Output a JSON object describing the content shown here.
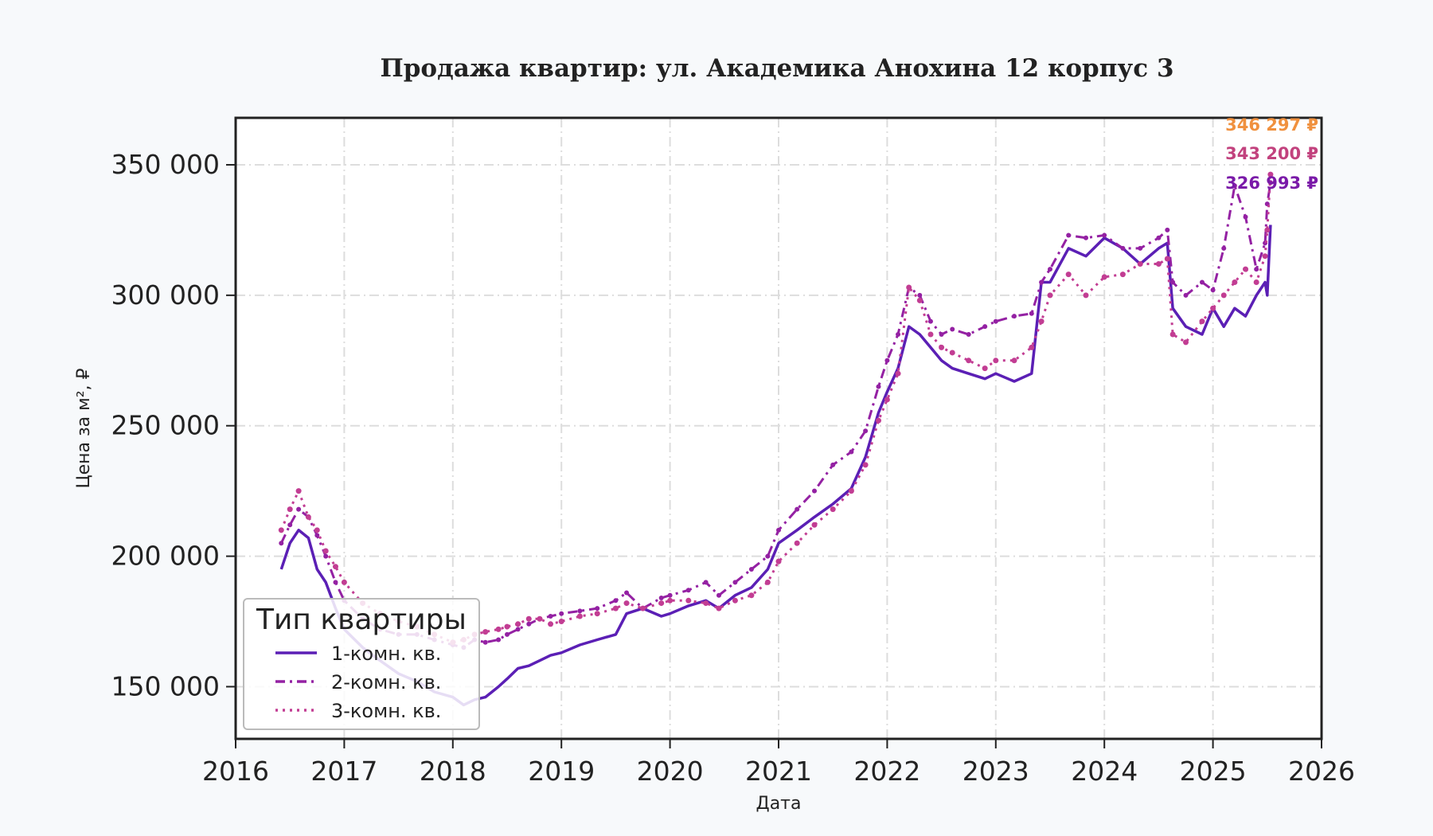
{
  "chart_data": {
    "type": "line",
    "title": "Продажа квартир: ул. Академика Анохина 12 корпус 3",
    "xlabel": "Дата",
    "ylabel": "Цена за м², ₽",
    "xlim": [
      2016.0,
      2026.0
    ],
    "ylim": [
      130000,
      368000
    ],
    "x_ticks": [
      "2016",
      "2017",
      "2018",
      "2019",
      "2020",
      "2021",
      "2022",
      "2023",
      "2024",
      "2025",
      "2026"
    ],
    "y_ticks": [
      {
        "value": 150000,
        "label": "150 000"
      },
      {
        "value": 200000,
        "label": "200 000"
      },
      {
        "value": 250000,
        "label": "250 000"
      },
      {
        "value": 300000,
        "label": "300 000"
      },
      {
        "value": 350000,
        "label": "350 000"
      }
    ],
    "grid": true,
    "legend": {
      "title": "Тип квартиры",
      "position": "bottom-left"
    },
    "series": [
      {
        "name": "1-комн. кв.",
        "color": "#5b1fb5",
        "style": "solid",
        "end_label": "326 993 ₽",
        "x": [
          2016.42,
          2016.5,
          2016.58,
          2016.67,
          2016.75,
          2016.83,
          2016.92,
          2017.0,
          2017.17,
          2017.33,
          2017.5,
          2017.67,
          2017.83,
          2018.0,
          2018.1,
          2018.2,
          2018.3,
          2018.42,
          2018.5,
          2018.6,
          2018.7,
          2018.8,
          2018.9,
          2019.0,
          2019.17,
          2019.33,
          2019.5,
          2019.6,
          2019.75,
          2019.92,
          2020.0,
          2020.17,
          2020.33,
          2020.45,
          2020.6,
          2020.75,
          2020.9,
          2021.0,
          2021.17,
          2021.33,
          2021.5,
          2021.67,
          2021.8,
          2021.92,
          2022.0,
          2022.1,
          2022.2,
          2022.3,
          2022.4,
          2022.5,
          2022.6,
          2022.75,
          2022.9,
          2023.0,
          2023.17,
          2023.33,
          2023.42,
          2023.5,
          2023.67,
          2023.83,
          2024.0,
          2024.17,
          2024.33,
          2024.5,
          2024.58,
          2024.63,
          2024.75,
          2024.9,
          2025.0,
          2025.1,
          2025.2,
          2025.3,
          2025.4,
          2025.48,
          2025.5,
          2025.53
        ],
        "values": [
          195000,
          205000,
          210000,
          207000,
          195000,
          190000,
          180000,
          172000,
          165000,
          160000,
          155000,
          152000,
          148000,
          146000,
          143000,
          145000,
          146000,
          150000,
          153000,
          157000,
          158000,
          160000,
          162000,
          163000,
          166000,
          168000,
          170000,
          178000,
          180000,
          177000,
          178000,
          181000,
          183000,
          180000,
          185000,
          188000,
          195000,
          205000,
          210000,
          215000,
          220000,
          226000,
          238000,
          255000,
          263000,
          272000,
          288000,
          285000,
          280000,
          275000,
          272000,
          270000,
          268000,
          270000,
          267000,
          270000,
          305000,
          305000,
          318000,
          315000,
          322000,
          318000,
          312000,
          318000,
          320000,
          295000,
          288000,
          285000,
          295000,
          288000,
          295000,
          292000,
          300000,
          305000,
          300000,
          326993
        ]
      },
      {
        "name": "2-комн. кв.",
        "color": "#9421a3",
        "style": "dash-dot",
        "end_label": "343 200 ₽",
        "x": [
          2016.42,
          2016.5,
          2016.58,
          2016.67,
          2016.75,
          2016.83,
          2016.92,
          2017.0,
          2017.17,
          2017.33,
          2017.5,
          2017.67,
          2017.83,
          2018.0,
          2018.1,
          2018.2,
          2018.3,
          2018.42,
          2018.5,
          2018.6,
          2018.7,
          2018.8,
          2018.9,
          2019.0,
          2019.17,
          2019.33,
          2019.5,
          2019.6,
          2019.75,
          2019.92,
          2020.0,
          2020.17,
          2020.33,
          2020.45,
          2020.6,
          2020.75,
          2020.9,
          2021.0,
          2021.17,
          2021.33,
          2021.5,
          2021.67,
          2021.8,
          2021.92,
          2022.0,
          2022.1,
          2022.2,
          2022.3,
          2022.4,
          2022.5,
          2022.6,
          2022.75,
          2022.9,
          2023.0,
          2023.17,
          2023.33,
          2023.42,
          2023.5,
          2023.67,
          2023.83,
          2024.0,
          2024.17,
          2024.33,
          2024.5,
          2024.58,
          2024.63,
          2024.75,
          2024.9,
          2025.0,
          2025.1,
          2025.2,
          2025.3,
          2025.4,
          2025.48,
          2025.5,
          2025.53
        ],
        "values": [
          205000,
          212000,
          218000,
          215000,
          208000,
          200000,
          190000,
          183000,
          176000,
          172000,
          170000,
          170000,
          168000,
          166000,
          165000,
          168000,
          167000,
          168000,
          170000,
          172000,
          174000,
          176000,
          177000,
          178000,
          179000,
          180000,
          183000,
          186000,
          180000,
          184000,
          185000,
          187000,
          190000,
          185000,
          190000,
          195000,
          200000,
          210000,
          218000,
          225000,
          235000,
          240000,
          248000,
          265000,
          275000,
          285000,
          303000,
          300000,
          290000,
          285000,
          287000,
          285000,
          288000,
          290000,
          292000,
          293000,
          305000,
          310000,
          323000,
          322000,
          323000,
          318000,
          318000,
          322000,
          325000,
          305000,
          300000,
          305000,
          302000,
          318000,
          342000,
          330000,
          310000,
          320000,
          335000,
          343200
        ]
      },
      {
        "name": "3-комн. кв.",
        "color": "#c23d93",
        "style": "dotted",
        "end_label": "346 297 ₽",
        "x": [
          2016.42,
          2016.5,
          2016.58,
          2016.67,
          2016.75,
          2016.83,
          2016.92,
          2017.0,
          2017.17,
          2017.33,
          2017.5,
          2017.67,
          2017.83,
          2018.0,
          2018.1,
          2018.2,
          2018.3,
          2018.42,
          2018.5,
          2018.6,
          2018.7,
          2018.8,
          2018.9,
          2019.0,
          2019.17,
          2019.33,
          2019.5,
          2019.6,
          2019.75,
          2019.92,
          2020.0,
          2020.17,
          2020.33,
          2020.45,
          2020.6,
          2020.75,
          2020.9,
          2021.0,
          2021.17,
          2021.33,
          2021.5,
          2021.67,
          2021.8,
          2021.92,
          2022.0,
          2022.1,
          2022.2,
          2022.3,
          2022.4,
          2022.5,
          2022.6,
          2022.75,
          2022.9,
          2023.0,
          2023.17,
          2023.33,
          2023.42,
          2023.5,
          2023.67,
          2023.83,
          2024.0,
          2024.17,
          2024.33,
          2024.5,
          2024.58,
          2024.63,
          2024.75,
          2024.9,
          2025.0,
          2025.1,
          2025.2,
          2025.3,
          2025.4,
          2025.48,
          2025.5,
          2025.53
        ],
        "values": [
          210000,
          218000,
          225000,
          215000,
          210000,
          202000,
          196000,
          190000,
          182000,
          178000,
          175000,
          173000,
          170000,
          167000,
          168000,
          170000,
          171000,
          172000,
          173000,
          174000,
          176000,
          176000,
          174000,
          175000,
          177000,
          178000,
          180000,
          182000,
          180000,
          182000,
          183000,
          183000,
          182000,
          180000,
          183000,
          185000,
          190000,
          198000,
          205000,
          212000,
          218000,
          225000,
          235000,
          252000,
          260000,
          270000,
          303000,
          298000,
          285000,
          280000,
          278000,
          275000,
          272000,
          275000,
          275000,
          280000,
          290000,
          300000,
          308000,
          300000,
          307000,
          308000,
          312000,
          312000,
          314000,
          285000,
          282000,
          290000,
          295000,
          300000,
          305000,
          310000,
          305000,
          315000,
          325000,
          346297
        ]
      }
    ]
  }
}
